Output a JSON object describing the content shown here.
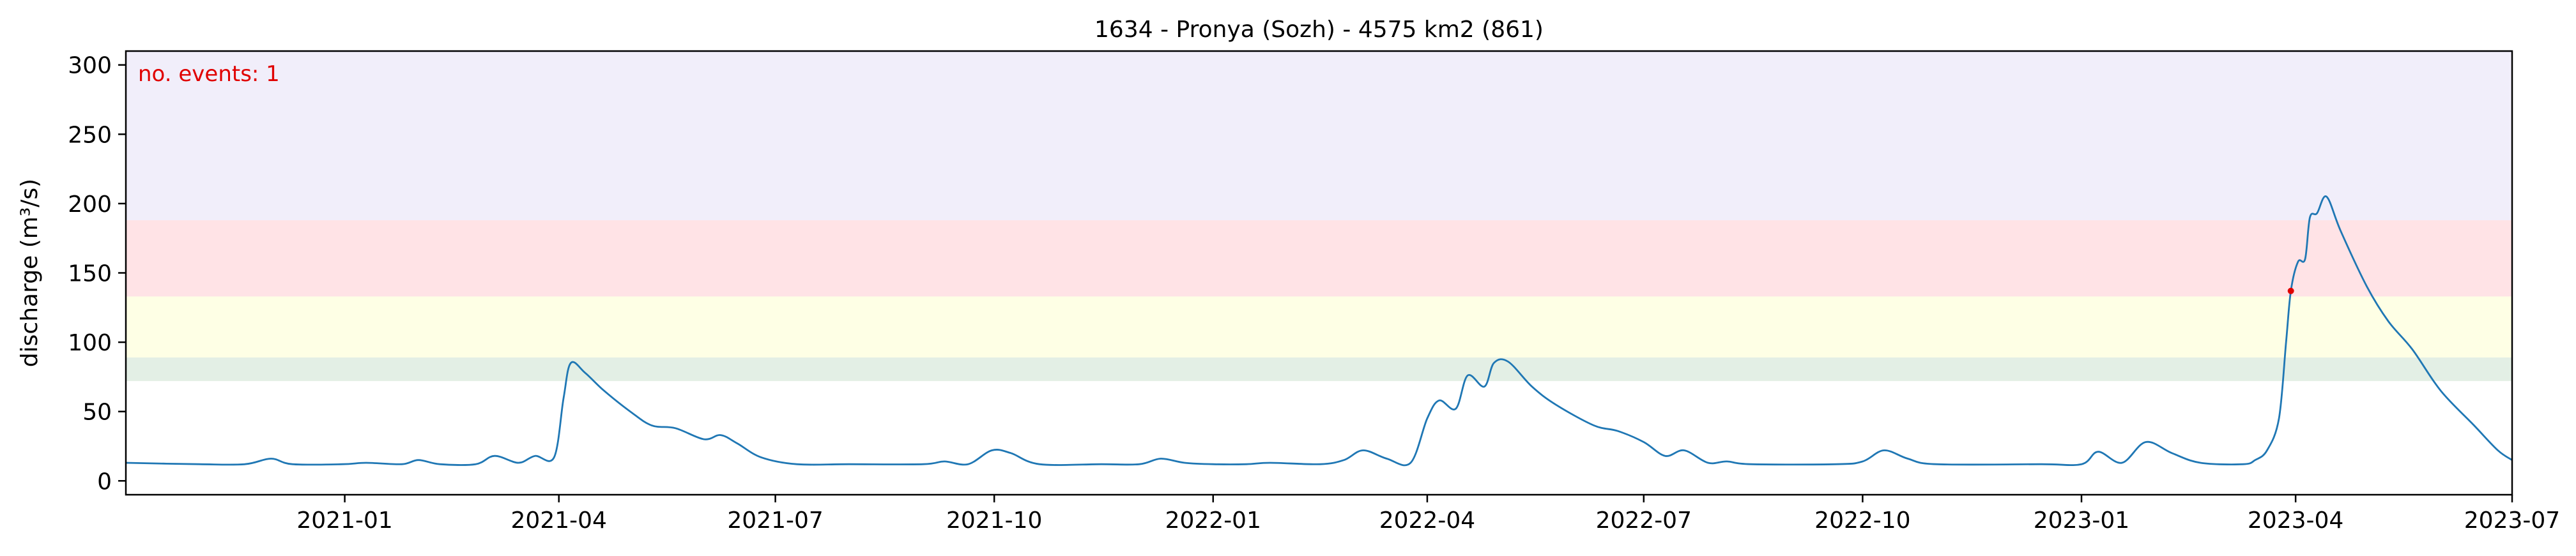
{
  "chart_data": {
    "type": "line",
    "title": "1634 - Pronya (Sozh) - 4575 km2 (861)",
    "xlabel": "",
    "ylabel": "discharge (m³/s)",
    "x_range": [
      "2020-10-01",
      "2023-07-01"
    ],
    "ylim": [
      -10,
      310
    ],
    "x_ticks": [
      "2021-01",
      "2021-04",
      "2021-07",
      "2021-10",
      "2022-01",
      "2022-04",
      "2022-07",
      "2022-10",
      "2023-01",
      "2023-04",
      "2023-07"
    ],
    "y_ticks": [
      0,
      50,
      100,
      150,
      200,
      250,
      300
    ],
    "annotation": {
      "text": "no. events: 1",
      "color": "#e00000",
      "position": "top-left"
    },
    "threshold_bands": [
      {
        "from": 72,
        "to": 89,
        "color": "#e3efe5"
      },
      {
        "from": 89,
        "to": 133,
        "color": "#feffe5"
      },
      {
        "from": 133,
        "to": 188,
        "color": "#ffe3e6"
      },
      {
        "from": 188,
        "to": 310,
        "color": "#f1eefa"
      }
    ],
    "series": [
      {
        "color": "#1f77b4",
        "points": [
          [
            "2020-10-01",
            13
          ],
          [
            "2020-11-01",
            12
          ],
          [
            "2020-11-20",
            12
          ],
          [
            "2020-12-01",
            16
          ],
          [
            "2020-12-10",
            12
          ],
          [
            "2020-12-31",
            12
          ],
          [
            "2021-01-10",
            13
          ],
          [
            "2021-01-25",
            12
          ],
          [
            "2021-02-01",
            15
          ],
          [
            "2021-02-10",
            12
          ],
          [
            "2021-02-25",
            12
          ],
          [
            "2021-03-05",
            18
          ],
          [
            "2021-03-15",
            13
          ],
          [
            "2021-03-22",
            18
          ],
          [
            "2021-03-30",
            17
          ],
          [
            "2021-04-03",
            60
          ],
          [
            "2021-04-06",
            85
          ],
          [
            "2021-04-12",
            78
          ],
          [
            "2021-04-20",
            65
          ],
          [
            "2021-05-01",
            50
          ],
          [
            "2021-05-10",
            40
          ],
          [
            "2021-05-20",
            38
          ],
          [
            "2021-06-01",
            30
          ],
          [
            "2021-06-08",
            33
          ],
          [
            "2021-06-15",
            27
          ],
          [
            "2021-06-25",
            17
          ],
          [
            "2021-07-10",
            12
          ],
          [
            "2021-08-01",
            12
          ],
          [
            "2021-09-01",
            12
          ],
          [
            "2021-09-10",
            14
          ],
          [
            "2021-09-20",
            12
          ],
          [
            "2021-09-30",
            22
          ],
          [
            "2021-10-08",
            20
          ],
          [
            "2021-10-20",
            12
          ],
          [
            "2021-11-15",
            12
          ],
          [
            "2021-12-01",
            12
          ],
          [
            "2021-12-10",
            16
          ],
          [
            "2021-12-20",
            13
          ],
          [
            "2022-01-01",
            12
          ],
          [
            "2022-01-15",
            12
          ],
          [
            "2022-01-25",
            13
          ],
          [
            "2022-02-15",
            12
          ],
          [
            "2022-02-25",
            15
          ],
          [
            "2022-03-05",
            22
          ],
          [
            "2022-03-15",
            16
          ],
          [
            "2022-03-25",
            13
          ],
          [
            "2022-04-01",
            45
          ],
          [
            "2022-04-06",
            58
          ],
          [
            "2022-04-13",
            52
          ],
          [
            "2022-04-18",
            76
          ],
          [
            "2022-04-25",
            68
          ],
          [
            "2022-04-29",
            85
          ],
          [
            "2022-05-05",
            86
          ],
          [
            "2022-05-15",
            68
          ],
          [
            "2022-05-25",
            55
          ],
          [
            "2022-06-10",
            40
          ],
          [
            "2022-06-20",
            36
          ],
          [
            "2022-07-01",
            28
          ],
          [
            "2022-07-10",
            18
          ],
          [
            "2022-07-18",
            22
          ],
          [
            "2022-07-28",
            13
          ],
          [
            "2022-08-05",
            14
          ],
          [
            "2022-08-15",
            12
          ],
          [
            "2022-09-20",
            12
          ],
          [
            "2022-10-01",
            14
          ],
          [
            "2022-10-10",
            22
          ],
          [
            "2022-10-20",
            16
          ],
          [
            "2022-11-01",
            12
          ],
          [
            "2022-12-15",
            12
          ],
          [
            "2023-01-01",
            12
          ],
          [
            "2023-01-08",
            21
          ],
          [
            "2023-01-18",
            13
          ],
          [
            "2023-01-28",
            28
          ],
          [
            "2023-02-08",
            20
          ],
          [
            "2023-02-20",
            13
          ],
          [
            "2023-03-10",
            12
          ],
          [
            "2023-03-15",
            15
          ],
          [
            "2023-03-20",
            22
          ],
          [
            "2023-03-25",
            45
          ],
          [
            "2023-03-28",
            100
          ],
          [
            "2023-03-30",
            137
          ],
          [
            "2023-04-02",
            158
          ],
          [
            "2023-04-05",
            160
          ],
          [
            "2023-04-07",
            190
          ],
          [
            "2023-04-10",
            193
          ],
          [
            "2023-04-14",
            205
          ],
          [
            "2023-04-20",
            180
          ],
          [
            "2023-05-01",
            140
          ],
          [
            "2023-05-10",
            115
          ],
          [
            "2023-05-20",
            95
          ],
          [
            "2023-06-01",
            65
          ],
          [
            "2023-06-15",
            40
          ],
          [
            "2023-06-25",
            22
          ],
          [
            "2023-07-01",
            15
          ]
        ]
      }
    ],
    "event_markers": [
      {
        "x": "2023-03-30",
        "y": 137,
        "color": "#e00000"
      }
    ]
  }
}
